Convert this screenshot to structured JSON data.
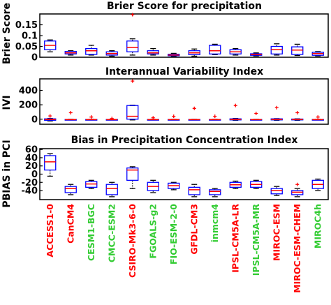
{
  "chart_data": [
    {
      "type": "box",
      "title": "Brier Score for precipitation",
      "ylabel": "Brier Score",
      "ylim": [
        0,
        0.2
      ],
      "yticks": [
        0,
        0.05,
        0.1,
        0.15
      ],
      "ytick_labels": [
        "0",
        "0.05",
        "0.1",
        "0.15"
      ],
      "grid": false,
      "boxes": [
        {
          "q1": 0.035,
          "median": 0.055,
          "q3": 0.075,
          "whisker_low": 0.025,
          "whisker_high": 0.08,
          "outliers": []
        },
        {
          "q1": 0.015,
          "median": 0.02,
          "q3": 0.027,
          "whisker_low": 0.01,
          "whisker_high": 0.03,
          "outliers": []
        },
        {
          "q1": 0.013,
          "median": 0.03,
          "q3": 0.04,
          "whisker_low": 0.01,
          "whisker_high": 0.055,
          "outliers": []
        },
        {
          "q1": 0.01,
          "median": 0.017,
          "q3": 0.025,
          "whisker_low": 0.005,
          "whisker_high": 0.03,
          "outliers": []
        },
        {
          "q1": 0.025,
          "median": 0.045,
          "q3": 0.075,
          "whisker_low": 0.01,
          "whisker_high": 0.085,
          "outliers": [
            0.2
          ]
        },
        {
          "q1": 0.015,
          "median": 0.02,
          "q3": 0.03,
          "whisker_low": 0.01,
          "whisker_high": 0.04,
          "outliers": []
        },
        {
          "q1": 0.007,
          "median": 0.01,
          "q3": 0.014,
          "whisker_low": 0.004,
          "whisker_high": 0.018,
          "outliers": []
        },
        {
          "q1": 0.012,
          "median": 0.02,
          "q3": 0.03,
          "whisker_low": 0.005,
          "whisker_high": 0.038,
          "outliers": []
        },
        {
          "q1": 0.015,
          "median": 0.03,
          "q3": 0.055,
          "whisker_low": 0.012,
          "whisker_high": 0.06,
          "outliers": []
        },
        {
          "q1": 0.015,
          "median": 0.025,
          "q3": 0.035,
          "whisker_low": 0.01,
          "whisker_high": 0.04,
          "outliers": []
        },
        {
          "q1": 0.009,
          "median": 0.012,
          "q3": 0.016,
          "whisker_low": 0.006,
          "whisker_high": 0.02,
          "outliers": []
        },
        {
          "q1": 0.015,
          "median": 0.035,
          "q3": 0.05,
          "whisker_low": 0.01,
          "whisker_high": 0.062,
          "outliers": []
        },
        {
          "q1": 0.013,
          "median": 0.033,
          "q3": 0.048,
          "whisker_low": 0.008,
          "whisker_high": 0.06,
          "outliers": []
        },
        {
          "q1": 0.009,
          "median": 0.017,
          "q3": 0.023,
          "whisker_low": 0.006,
          "whisker_high": 0.026,
          "outliers": []
        }
      ]
    },
    {
      "type": "box",
      "title": "Interannual Variability Index",
      "ylabel": "IVI",
      "ylim": [
        -70,
        560
      ],
      "yticks": [
        0,
        200,
        400
      ],
      "ytick_labels": [
        "0",
        "200",
        "400"
      ],
      "grid": false,
      "boxes": [
        {
          "q1": -15,
          "median": -5,
          "q3": 5,
          "whisker_low": -25,
          "whisker_high": 10,
          "outliers": [
            45
          ]
        },
        {
          "q1": -8,
          "median": -6,
          "q3": -4,
          "whisker_low": -10,
          "whisker_high": -2,
          "outliers": [
            90
          ]
        },
        {
          "q1": -8,
          "median": -6,
          "q3": -4,
          "whisker_low": -10,
          "whisker_high": -2,
          "outliers": [
            30
          ]
        },
        {
          "q1": -8,
          "median": -6,
          "q3": -4,
          "whisker_low": -10,
          "whisker_high": -2,
          "outliers": [
            10
          ]
        },
        {
          "q1": 0,
          "median": 40,
          "q3": 190,
          "whisker_low": -10,
          "whisker_high": 195,
          "outliers": [
            530
          ]
        },
        {
          "q1": -8,
          "median": -6,
          "q3": -4,
          "whisker_low": -10,
          "whisker_high": -2,
          "outliers": [
            20
          ]
        },
        {
          "q1": -8,
          "median": -6,
          "q3": -4,
          "whisker_low": -10,
          "whisker_high": -2,
          "outliers": [
            40
          ]
        },
        {
          "q1": -8,
          "median": -6,
          "q3": -4,
          "whisker_low": -10,
          "whisker_high": -2,
          "outliers": [
            150
          ]
        },
        {
          "q1": -8,
          "median": -6,
          "q3": -4,
          "whisker_low": -10,
          "whisker_high": -2,
          "outliers": [
            40
          ]
        },
        {
          "q1": -10,
          "median": -5,
          "q3": 5,
          "whisker_low": -15,
          "whisker_high": 10,
          "outliers": [
            190
          ]
        },
        {
          "q1": -8,
          "median": -6,
          "q3": -4,
          "whisker_low": -10,
          "whisker_high": -2,
          "outliers": [
            80
          ]
        },
        {
          "q1": -10,
          "median": -5,
          "q3": 5,
          "whisker_low": -15,
          "whisker_high": 8,
          "outliers": [
            160
          ]
        },
        {
          "q1": -10,
          "median": -5,
          "q3": 2,
          "whisker_low": -15,
          "whisker_high": 5,
          "outliers": [
            90
          ]
        },
        {
          "q1": -8,
          "median": -6,
          "q3": -4,
          "whisker_low": -10,
          "whisker_high": -2,
          "outliers": [
            30
          ]
        }
      ]
    },
    {
      "type": "box",
      "title": "Bias in Precipitation Concentration Index",
      "ylabel": "PBIAS in PCI",
      "ylim": [
        -62,
        62
      ],
      "yticks": [
        60,
        40,
        20,
        0,
        -20,
        -40
      ],
      "ytick_labels": [
        "60",
        "40",
        "20",
        "0",
        "-20",
        "-40"
      ],
      "grid": false,
      "boxes": [
        {
          "q1": 10,
          "median": 30,
          "q3": 45,
          "whisker_low": -5,
          "whisker_high": 50,
          "outliers": []
        },
        {
          "q1": -45,
          "median": -35,
          "q3": -30,
          "whisker_low": -50,
          "whisker_high": -25,
          "outliers": []
        },
        {
          "q1": -32,
          "median": -24,
          "q3": -18,
          "whisker_low": -35,
          "whisker_high": -15,
          "outliers": []
        },
        {
          "q1": -50,
          "median": -35,
          "q3": -25,
          "whisker_low": -55,
          "whisker_high": -20,
          "outliers": []
        },
        {
          "q1": -15,
          "median": 10,
          "q3": 15,
          "whisker_low": -35,
          "whisker_high": 18,
          "outliers": []
        },
        {
          "q1": -40,
          "median": -30,
          "q3": -20,
          "whisker_low": -45,
          "whisker_high": -15,
          "outliers": []
        },
        {
          "q1": -35,
          "median": -28,
          "q3": -22,
          "whisker_low": -38,
          "whisker_high": -20,
          "outliers": []
        },
        {
          "q1": -50,
          "median": -38,
          "q3": -32,
          "whisker_low": -55,
          "whisker_high": -25,
          "outliers": []
        },
        {
          "q1": -50,
          "median": -42,
          "q3": -38,
          "whisker_low": -55,
          "whisker_high": -35,
          "outliers": []
        },
        {
          "q1": -32,
          "median": -26,
          "q3": -20,
          "whisker_low": -35,
          "whisker_high": -17,
          "outliers": []
        },
        {
          "q1": -32,
          "median": -25,
          "q3": -18,
          "whisker_low": -35,
          "whisker_high": -15,
          "outliers": []
        },
        {
          "q1": -48,
          "median": -40,
          "q3": -35,
          "whisker_low": -52,
          "whisker_high": -30,
          "outliers": []
        },
        {
          "q1": -50,
          "median": -44,
          "q3": -40,
          "whisker_low": -55,
          "whisker_high": -35,
          "outliers": [
            -25
          ]
        },
        {
          "q1": -35,
          "median": -25,
          "q3": -15,
          "whisker_low": -40,
          "whisker_high": -12,
          "outliers": []
        }
      ]
    }
  ],
  "models": [
    {
      "name": "ACCESS1-0",
      "color": "#ff0000"
    },
    {
      "name": "CanCM4",
      "color": "#ff0000"
    },
    {
      "name": "CESM1-BGC",
      "color": "#33cc33"
    },
    {
      "name": "CMCC-ESM2",
      "color": "#33cc33"
    },
    {
      "name": "CSIRO-Mk3-6-0",
      "color": "#ff0000"
    },
    {
      "name": "FGOALS-g2",
      "color": "#33cc33"
    },
    {
      "name": "FIO-ESM-2-0",
      "color": "#33cc33"
    },
    {
      "name": "GFDL-CM3",
      "color": "#ff0000"
    },
    {
      "name": "inmcm4",
      "color": "#33cc33"
    },
    {
      "name": "IPSL-CM5A-LR",
      "color": "#ff0000"
    },
    {
      "name": "IPSL-CM5A-MR",
      "color": "#33cc33"
    },
    {
      "name": "MIROC-ESM",
      "color": "#ff0000"
    },
    {
      "name": "MIROC-ESM-CHEM",
      "color": "#ff0000"
    },
    {
      "name": "MIROC4h",
      "color": "#33cc33"
    }
  ],
  "style": {
    "box_color": "#0000ff",
    "median_color": "#ff0000",
    "whisker_color": "#000000",
    "outlier_color": "#ff0000",
    "outlier_marker": "+"
  }
}
